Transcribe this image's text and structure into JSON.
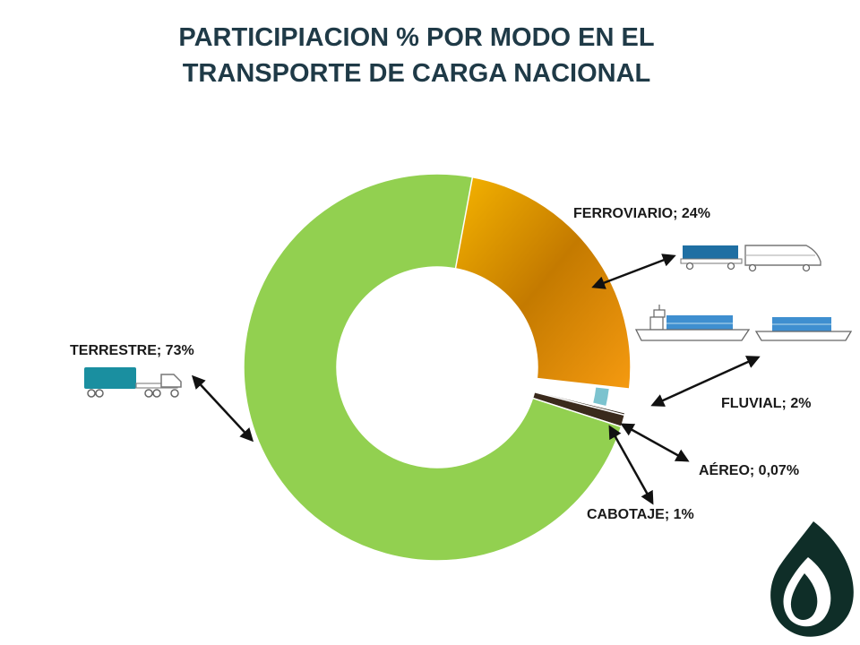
{
  "title_line1": "PARTICIPIACION % POR MODO EN EL",
  "title_line2": "TRANSPORTE DE CARGA NACIONAL",
  "colors": {
    "terrestre": "#92d050",
    "ferroviario": "#e8900a",
    "fluvial": "#7cc3cf",
    "aereo": "#2f2418",
    "cabotaje": "#3a2a1c",
    "title": "#1f3a47",
    "logo": "#0f2e28"
  },
  "chart_data": {
    "type": "pie",
    "title": "PARTICIPIACION % POR MODO EN EL TRANSPORTE DE CARGA NACIONAL",
    "slices": [
      {
        "name": "TERRESTRE",
        "value": 73,
        "label": "TERRESTRE; 73%"
      },
      {
        "name": "FERROVIARIO",
        "value": 24,
        "label": "FERROVIARIO; 24%"
      },
      {
        "name": "FLUVIAL",
        "value": 2,
        "label": "FLUVIAL; 2%"
      },
      {
        "name": "AÉREO",
        "value": 0.07,
        "label": "AÉREO; 0,07%"
      },
      {
        "name": "CABOTAJE",
        "value": 1,
        "label": "CABOTAJE; 1%"
      }
    ]
  },
  "icons": {
    "terrestre": "truck-icon",
    "ferroviario": "train-icon",
    "fluvial": "barge-icon",
    "logo": "leaf-logo-icon"
  }
}
